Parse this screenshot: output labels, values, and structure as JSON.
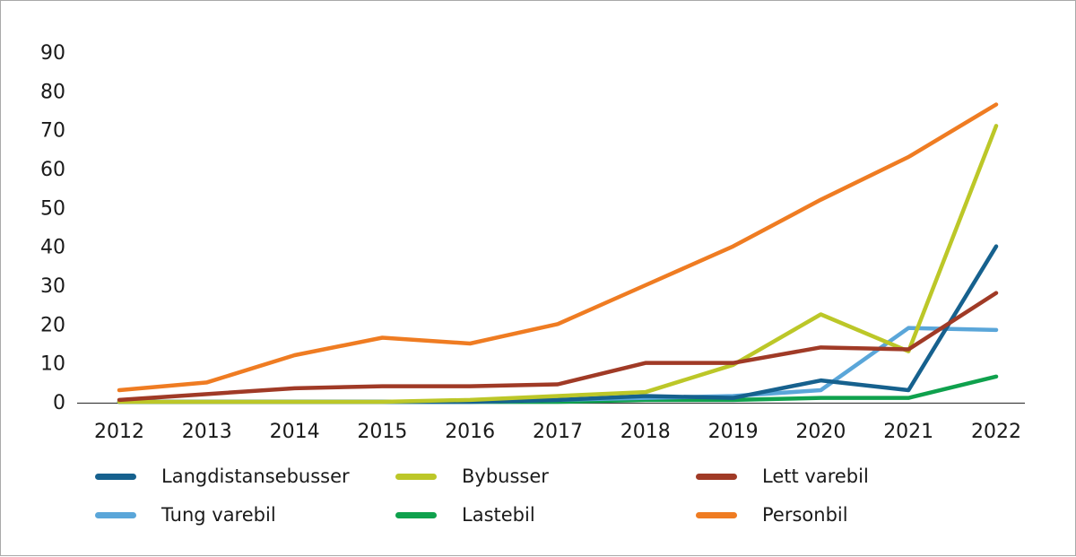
{
  "chart_data": {
    "type": "line",
    "title": "",
    "xlabel": "",
    "ylabel": "",
    "x": [
      "2012",
      "2013",
      "2014",
      "2015",
      "2016",
      "2017",
      "2018",
      "2019",
      "2020",
      "2021",
      "2022"
    ],
    "ylim": [
      0,
      90
    ],
    "yticks": [
      0,
      10,
      20,
      30,
      40,
      50,
      60,
      70,
      80,
      90
    ],
    "grid": false,
    "legend_position": "bottom",
    "series": [
      {
        "name": "Langdistansebusser",
        "color": "#16618e",
        "values": [
          0,
          0,
          0,
          0,
          0,
          0.5,
          1.5,
          1,
          5.5,
          3,
          40
        ]
      },
      {
        "name": "Bybusser",
        "color": "#bcc728",
        "values": [
          0,
          0,
          0,
          0,
          0.5,
          1.5,
          2.5,
          9.5,
          22.5,
          13,
          71
        ]
      },
      {
        "name": "Lett varebil",
        "color": "#a03a26",
        "values": [
          0.5,
          2,
          3.5,
          4,
          4,
          4.5,
          10,
          10,
          14,
          13.5,
          28
        ]
      },
      {
        "name": "Tung varebil",
        "color": "#5aa6d9",
        "values": [
          0,
          0,
          0,
          0,
          0,
          0.5,
          1,
          1.5,
          3,
          19,
          18.5
        ]
      },
      {
        "name": "Lastebil",
        "color": "#0fa14d",
        "values": [
          0,
          0,
          0,
          0,
          0,
          0,
          0.5,
          0.5,
          1,
          1,
          6.5
        ]
      },
      {
        "name": "Personbil",
        "color": "#ef7c22",
        "values": [
          3,
          5,
          12,
          16.5,
          15,
          20,
          30,
          40,
          52,
          63,
          76.5
        ]
      }
    ]
  }
}
